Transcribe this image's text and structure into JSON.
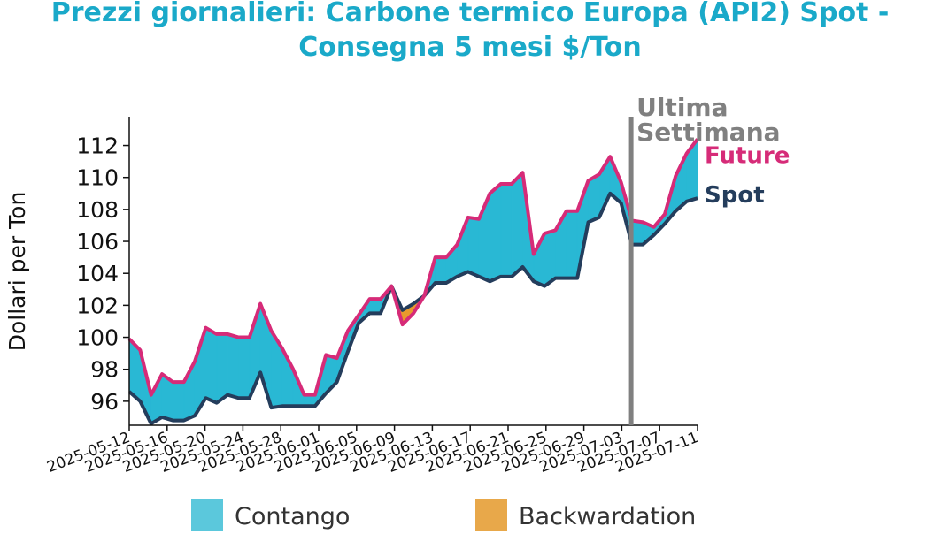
{
  "chart_data": {
    "type": "area",
    "title_line1": "Prezzi giornalieri: Carbone termico Europa (API2) Spot -",
    "title_line2": "Consegna 5 mesi $/Ton",
    "ylabel": "Dollari per Ton",
    "xlabel": "",
    "ylim": [
      94.5,
      113.8
    ],
    "yticks": [
      96,
      98,
      100,
      102,
      104,
      106,
      108,
      110,
      112
    ],
    "xlim": [
      "2025-05-12",
      "2025-07-11"
    ],
    "xticks": [
      "2025-05-12",
      "2025-05-16",
      "2025-05-20",
      "2025-05-24",
      "2025-05-28",
      "2025-06-01",
      "2025-06-05",
      "2025-06-09",
      "2025-06-13",
      "2025-06-17",
      "2025-06-21",
      "2025-06-25",
      "2025-06-29",
      "2025-07-03",
      "2025-07-07",
      "2025-07-11"
    ],
    "grid": false,
    "legend_position": "bottom",
    "legend": [
      {
        "label": "Contango",
        "color": "#5bc8dc"
      },
      {
        "label": "Backwardation",
        "color": "#e8a84a"
      }
    ],
    "fill_colors": {
      "contango": "#29b8d4",
      "backwardation": "#e89a2e"
    },
    "series": [
      {
        "name": "Future",
        "color": "#d62b78"
      },
      {
        "name": "Spot",
        "color": "#243d5c"
      }
    ],
    "marker": {
      "date": "2025-07-04",
      "label_line1": "Ultima",
      "label_line2": "Settimana",
      "color": "#808080"
    },
    "points": [
      {
        "date": "2025-05-12",
        "future": 99.9,
        "spot": 96.6
      },
      {
        "date": "2025-05-13",
        "future": 99.2,
        "spot": 96.0
      },
      {
        "date": "2025-05-14",
        "future": 96.4,
        "spot": 94.6
      },
      {
        "date": "2025-05-15",
        "future": 97.7,
        "spot": 95.0
      },
      {
        "date": "2025-05-16",
        "future": 97.2,
        "spot": 94.8
      },
      {
        "date": "2025-05-19",
        "future": 97.2,
        "spot": 94.8
      },
      {
        "date": "2025-05-20",
        "future": 98.5,
        "spot": 95.1
      },
      {
        "date": "2025-05-21",
        "future": 100.6,
        "spot": 96.2
      },
      {
        "date": "2025-05-22",
        "future": 100.2,
        "spot": 95.9
      },
      {
        "date": "2025-05-23",
        "future": 100.2,
        "spot": 96.4
      },
      {
        "date": "2025-05-24",
        "future": 100.0,
        "spot": 96.2
      },
      {
        "date": "2025-05-27",
        "future": 100.0,
        "spot": 96.2
      },
      {
        "date": "2025-05-28",
        "future": 102.1,
        "spot": 97.8
      },
      {
        "date": "2025-05-29",
        "future": 100.4,
        "spot": 95.6
      },
      {
        "date": "2025-05-30",
        "future": 99.3,
        "spot": 95.7
      },
      {
        "date": "2025-05-31",
        "future": 98.0,
        "spot": 95.7
      },
      {
        "date": "2025-06-01",
        "future": 96.4,
        "spot": 95.7
      },
      {
        "date": "2025-06-03",
        "future": 96.4,
        "spot": 95.7
      },
      {
        "date": "2025-06-04",
        "future": 98.9,
        "spot": 96.5
      },
      {
        "date": "2025-06-05",
        "future": 98.7,
        "spot": 97.2
      },
      {
        "date": "2025-06-06",
        "future": 100.4,
        "spot": 99.1
      },
      {
        "date": "2025-06-07",
        "future": 101.4,
        "spot": 100.9
      },
      {
        "date": "2025-06-08",
        "future": 102.4,
        "spot": 101.5
      },
      {
        "date": "2025-06-10",
        "future": 102.4,
        "spot": 101.5
      },
      {
        "date": "2025-06-11",
        "future": 103.2,
        "spot": 103.2
      },
      {
        "date": "2025-06-12",
        "future": 100.8,
        "spot": 101.7
      },
      {
        "date": "2025-06-13",
        "future": 101.5,
        "spot": 102.1
      },
      {
        "date": "2025-06-14",
        "future": 102.6,
        "spot": 102.6
      },
      {
        "date": "2025-06-15",
        "future": 105.0,
        "spot": 103.4
      },
      {
        "date": "2025-06-17",
        "future": 105.0,
        "spot": 103.4
      },
      {
        "date": "2025-06-18",
        "future": 105.8,
        "spot": 103.8
      },
      {
        "date": "2025-06-19",
        "future": 107.5,
        "spot": 104.1
      },
      {
        "date": "2025-06-20",
        "future": 107.4,
        "spot": 103.8
      },
      {
        "date": "2025-06-21",
        "future": 109.0,
        "spot": 103.5
      },
      {
        "date": "2025-06-22",
        "future": 109.6,
        "spot": 103.8
      },
      {
        "date": "2025-06-24",
        "future": 109.6,
        "spot": 103.8
      },
      {
        "date": "2025-06-25",
        "future": 110.3,
        "spot": 104.4
      },
      {
        "date": "2025-06-26",
        "future": 105.2,
        "spot": 103.5
      },
      {
        "date": "2025-06-27",
        "future": 106.5,
        "spot": 103.2
      },
      {
        "date": "2025-06-28",
        "future": 106.7,
        "spot": 103.7
      },
      {
        "date": "2025-06-29",
        "future": 107.9,
        "spot": 103.7
      },
      {
        "date": "2025-07-02",
        "future": 107.9,
        "spot": 103.7
      },
      {
        "date": "2025-07-03",
        "future": 109.8,
        "spot": 107.2
      },
      {
        "date": "2025-07-04",
        "future": 110.2,
        "spot": 107.5
      },
      {
        "date": "2025-07-05",
        "future": 111.3,
        "spot": 109.0
      },
      {
        "date": "2025-07-06",
        "future": 109.7,
        "spot": 108.4
      },
      {
        "date": "2025-07-07",
        "future": 107.3,
        "spot": 105.8
      },
      {
        "date": "2025-07-09",
        "future": 107.2,
        "spot": 105.8
      },
      {
        "date": "2025-07-10",
        "future": 106.9,
        "spot": 106.4
      },
      {
        "date": "2025-07-11",
        "future": 107.7,
        "spot": 107.1
      },
      {
        "date": "2025-07-12",
        "future": 110.1,
        "spot": 107.9
      },
      {
        "date": "2025-07-13",
        "future": 111.5,
        "spot": 108.5
      },
      {
        "date": "2025-07-14",
        "future": 112.4,
        "spot": 108.7
      }
    ]
  }
}
